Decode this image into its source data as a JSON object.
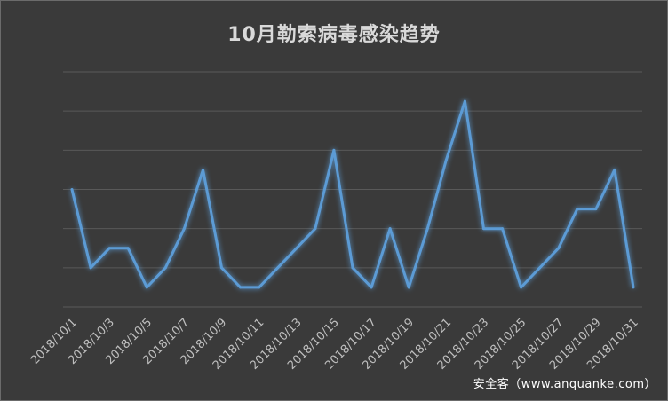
{
  "watermark": "安全客（www.anquanke.com）",
  "chart_data": {
    "type": "line",
    "title": "10月勒索病毒感染趋势",
    "xlabel": "",
    "ylabel": "",
    "grid": true,
    "y_axis_labels_visible": false,
    "ylim": [
      0,
      12
    ],
    "color": "#5b9bd5",
    "x": [
      "2018/10/1",
      "2018/10/2",
      "2018/10/3",
      "2018/10/4",
      "2018/10/5",
      "2018/10/6",
      "2018/10/7",
      "2018/10/8",
      "2018/10/9",
      "2018/10/10",
      "2018/10/11",
      "2018/10/12",
      "2018/10/13",
      "2018/10/14",
      "2018/10/15",
      "2018/10/16",
      "2018/10/17",
      "2018/10/18",
      "2018/10/19",
      "2018/10/20",
      "2018/10/21",
      "2018/10/22",
      "2018/10/23",
      "2018/10/24",
      "2018/10/25",
      "2018/10/26",
      "2018/10/27",
      "2018/10/28",
      "2018/10/29",
      "2018/10/30",
      "2018/10/31"
    ],
    "x_tick_labels": [
      "2018/10/1",
      "2018/10/3",
      "2018/10/5",
      "2018/10/7",
      "2018/10/9",
      "2018/10/11",
      "2018/10/13",
      "2018/10/15",
      "2018/10/17",
      "2018/10/19",
      "2018/10/21",
      "2018/10/23",
      "2018/10/25",
      "2018/10/27",
      "2018/10/29",
      "2018/10/31"
    ],
    "values": [
      6,
      2,
      3,
      3,
      1,
      2,
      4,
      7,
      2,
      1,
      1,
      2,
      3,
      4,
      8,
      2,
      1,
      4,
      1,
      4,
      7.5,
      10.5,
      4,
      4,
      1,
      2,
      3,
      5,
      5,
      7,
      1
    ]
  }
}
